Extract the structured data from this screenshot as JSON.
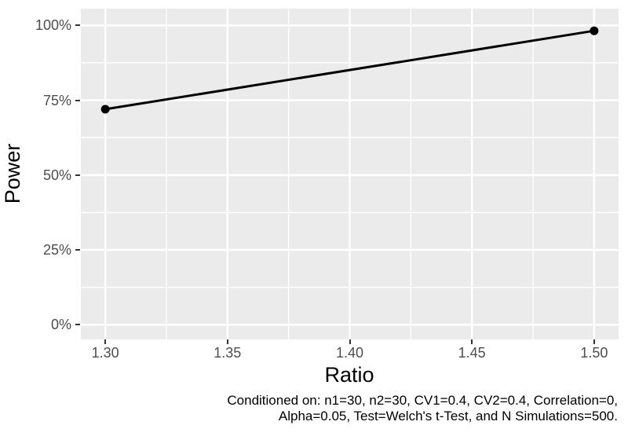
{
  "chart_data": {
    "type": "line",
    "title": "",
    "xlabel": "Ratio",
    "ylabel": "Power",
    "x_range": [
      1.29,
      1.51
    ],
    "y_range": [
      -4.9,
      105.6
    ],
    "x_ticks": [
      {
        "v": 1.3,
        "label": "1.30"
      },
      {
        "v": 1.35,
        "label": "1.35"
      },
      {
        "v": 1.4,
        "label": "1.40"
      },
      {
        "v": 1.45,
        "label": "1.45"
      },
      {
        "v": 1.5,
        "label": "1.50"
      }
    ],
    "y_ticks": [
      {
        "v": 0,
        "label": "0%"
      },
      {
        "v": 25,
        "label": "25%"
      },
      {
        "v": 50,
        "label": "50%"
      },
      {
        "v": 75,
        "label": "75%"
      },
      {
        "v": 100,
        "label": "100%"
      }
    ],
    "x_minor": [
      1.325,
      1.375,
      1.425,
      1.475
    ],
    "y_minor": [
      12.5,
      37.5,
      62.5,
      87.5
    ],
    "series": [
      {
        "name": "power",
        "points": [
          {
            "x": 1.3,
            "y": 72.0
          },
          {
            "x": 1.5,
            "y": 98.2
          }
        ]
      }
    ],
    "caption": {
      "lines": [
        "Conditioned on: n1=30, n2=30, CV1=0.4, CV2=0.4, Correlation=0,",
        "Alpha=0.05, Test=Welch's t-Test, and N Simulations=500."
      ]
    },
    "style": {
      "panel_bg": "#EBEBEB",
      "grid_color": "#FFFFFF",
      "line_color": "#000000",
      "point_color": "#000000",
      "tick_label_color": "#4D4D4D",
      "tick_mark_color": "#333333",
      "axis_title_color": "#000000",
      "caption_color": "#000000"
    }
  }
}
